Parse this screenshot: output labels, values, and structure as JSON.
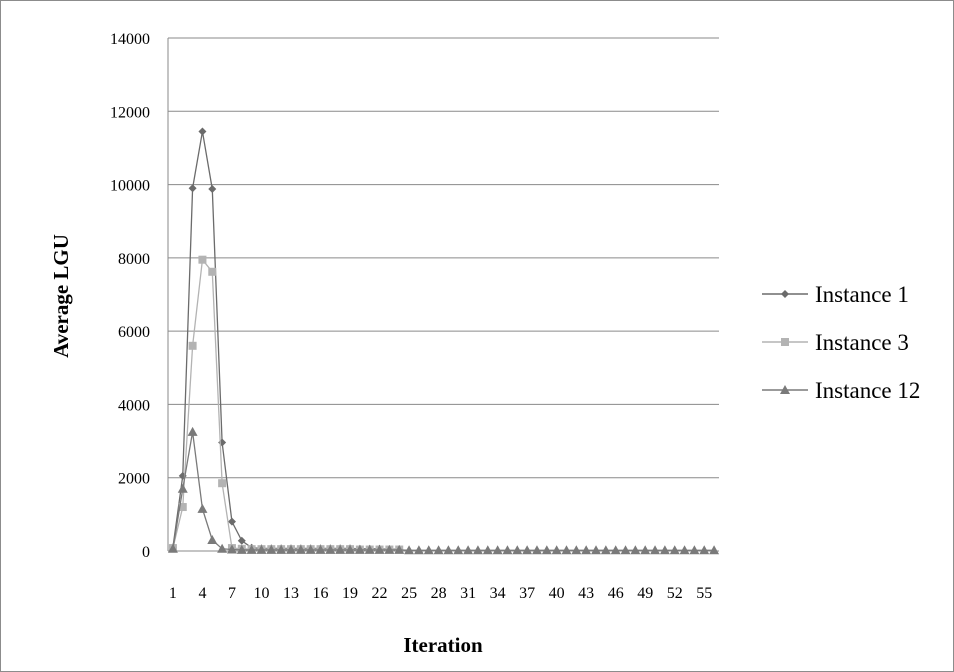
{
  "chart_data": {
    "type": "line",
    "xlabel": "Iteration",
    "ylabel": "Average LGU",
    "ylim": [
      0,
      14000
    ],
    "yticks": [
      "0",
      "2000",
      "4000",
      "6000",
      "8000",
      "10000",
      "12000",
      "14000"
    ],
    "xlim": [
      1,
      56
    ],
    "xticks": [
      1,
      4,
      7,
      10,
      13,
      16,
      19,
      22,
      25,
      28,
      31,
      34,
      37,
      40,
      43,
      46,
      49,
      52,
      55
    ],
    "grid": "horizontal",
    "legend_position": "right",
    "series": [
      {
        "name": "Instance 1",
        "marker": "diamond",
        "color": "#6b6b6b",
        "x": [
          1,
          2,
          3,
          4,
          5,
          6,
          7,
          8,
          9,
          10,
          11,
          12,
          13,
          14,
          15,
          16,
          17,
          18,
          19,
          20,
          21,
          22,
          23,
          24
        ],
        "values": [
          100,
          2050,
          9900,
          11450,
          9880,
          2960,
          800,
          280,
          90,
          70,
          70,
          70,
          70,
          70,
          70,
          70,
          70,
          70,
          70,
          60,
          60,
          60,
          50,
          50
        ]
      },
      {
        "name": "Instance 3",
        "marker": "square",
        "color": "#b3b3b3",
        "x": [
          1,
          2,
          3,
          4,
          5,
          6,
          7,
          8,
          9,
          10,
          11,
          12,
          13,
          14,
          15,
          16,
          17,
          18,
          19,
          20,
          21,
          22,
          23,
          24
        ],
        "values": [
          80,
          1200,
          5600,
          7950,
          7620,
          1850,
          80,
          60,
          50,
          50,
          50,
          50,
          50,
          50,
          50,
          50,
          50,
          50,
          50,
          40,
          40,
          40,
          40,
          40
        ]
      },
      {
        "name": "Instance 12",
        "marker": "triangle",
        "color": "#7a7a7a",
        "x": [
          1,
          2,
          3,
          4,
          5,
          6,
          7,
          8,
          9,
          10,
          11,
          12,
          13,
          14,
          15,
          16,
          17,
          18,
          19,
          20,
          21,
          22,
          23,
          24,
          25,
          26,
          27,
          28,
          29,
          30,
          31,
          32,
          33,
          34,
          35,
          36,
          37,
          38,
          39,
          40,
          41,
          42,
          43,
          44,
          45,
          46,
          47,
          48,
          49,
          50,
          51,
          52,
          53,
          54,
          55,
          56
        ],
        "values": [
          60,
          1700,
          3250,
          1150,
          300,
          60,
          40,
          30,
          30,
          30,
          30,
          30,
          30,
          30,
          30,
          30,
          30,
          30,
          30,
          30,
          30,
          30,
          30,
          30,
          20,
          20,
          20,
          20,
          20,
          20,
          20,
          20,
          20,
          20,
          20,
          20,
          20,
          20,
          20,
          20,
          20,
          20,
          20,
          20,
          20,
          20,
          20,
          20,
          20,
          20,
          20,
          20,
          20,
          20,
          20,
          20
        ]
      }
    ]
  }
}
